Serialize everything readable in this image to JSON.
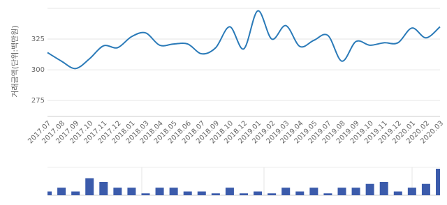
{
  "chart_data": [
    {
      "type": "line",
      "y_label": "거래금액(단위:백만원)",
      "categories": [
        "2017.07",
        "2017.08",
        "2017.09",
        "2017.10",
        "2017.11",
        "2017.12",
        "2018.01",
        "2018.03",
        "2018.04",
        "2018.05",
        "2018.06",
        "2018.07",
        "2018.09",
        "2018.10",
        "2018.12",
        "2019.01",
        "2019.02",
        "2019.03",
        "2019.04",
        "2019.05",
        "2019.07",
        "2019.08",
        "2019.09",
        "2019.10",
        "2019.11",
        "2019.12",
        "2020.01",
        "2020.02",
        "2020.03"
      ],
      "values": [
        314,
        307,
        301,
        309,
        319.5,
        318,
        327,
        330,
        320,
        321,
        321,
        313,
        318,
        335,
        317,
        348,
        325,
        336,
        319,
        324,
        328,
        307,
        323,
        320,
        322,
        322,
        334,
        326,
        335
      ],
      "color": "#2a7ab8",
      "ylim": [
        262,
        350
      ],
      "yticks": [
        275,
        300,
        325
      ],
      "grid": true
    },
    {
      "type": "bar",
      "values": [
        2,
        4,
        2,
        9,
        7,
        4,
        4,
        1,
        4,
        4,
        2,
        2,
        1,
        4,
        1,
        2,
        1,
        4,
        2,
        4,
        1,
        4,
        4,
        6,
        7,
        2,
        4,
        6,
        14
      ],
      "color": "#3b5bab"
    }
  ]
}
